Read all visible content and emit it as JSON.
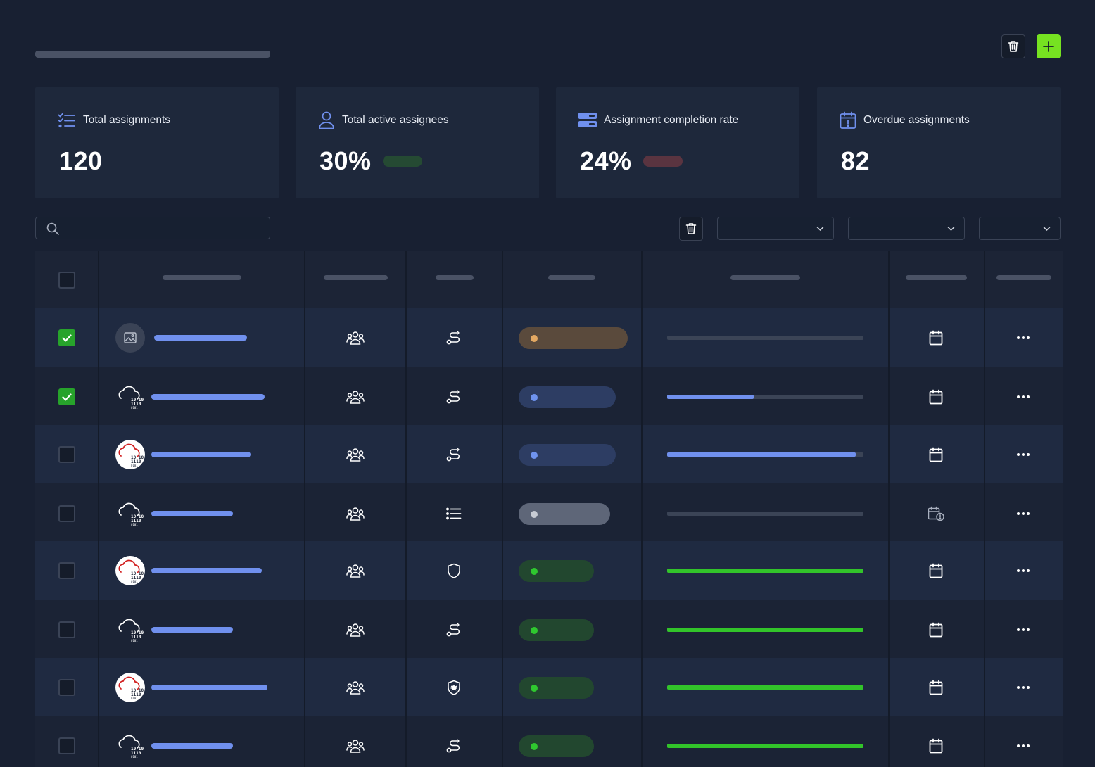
{
  "header": {
    "delete_icon": "trash-icon",
    "add_icon": "plus-icon",
    "accent_color": "#76e221"
  },
  "stats": [
    {
      "icon": "checklist-icon",
      "title": "Total assignments",
      "value": "120",
      "indicator_color": ""
    },
    {
      "icon": "user-icon",
      "title": "Total active assignees",
      "value": "30%",
      "indicator_color": "#254a33"
    },
    {
      "icon": "server-icon",
      "title": "Assignment completion rate",
      "value": "24%",
      "indicator_color": "#5a3440"
    },
    {
      "icon": "calendar-alert-icon",
      "title": "Overdue assignments",
      "value": "82",
      "indicator_color": ""
    }
  ],
  "toolbar": {
    "search_placeholder": "",
    "filters": [
      "",
      "",
      ""
    ]
  },
  "table": {
    "rows": [
      {
        "checked": true,
        "avatar": "image-placeholder",
        "type_icon": "route-icon",
        "status": "orange",
        "progress": 0,
        "due_icon": "calendar-icon"
      },
      {
        "checked": true,
        "avatar": "cloud-binary",
        "type_icon": "route-icon",
        "status": "blue",
        "progress": 0.44,
        "due_icon": "calendar-icon"
      },
      {
        "checked": false,
        "avatar": "cloud-binary-red",
        "type_icon": "route-icon",
        "status": "blue",
        "progress": 0.96,
        "due_icon": "calendar-icon"
      },
      {
        "checked": false,
        "avatar": "cloud-binary",
        "type_icon": "list-icon",
        "status": "gray",
        "progress": 0,
        "due_icon": "calendar-overdue-icon"
      },
      {
        "checked": false,
        "avatar": "cloud-binary-red",
        "type_icon": "shield-icon",
        "status": "green",
        "progress": 1,
        "due_icon": "calendar-icon"
      },
      {
        "checked": false,
        "avatar": "cloud-binary",
        "type_icon": "route-icon",
        "status": "green",
        "progress": 1,
        "due_icon": "calendar-icon"
      },
      {
        "checked": false,
        "avatar": "cloud-binary-red",
        "type_icon": "shield-bug-icon",
        "status": "green",
        "progress": 1,
        "due_icon": "calendar-icon"
      },
      {
        "checked": false,
        "avatar": "cloud-binary",
        "type_icon": "route-icon",
        "status": "green",
        "progress": 1,
        "due_icon": "calendar-icon"
      }
    ],
    "status_colors": {
      "orange": {
        "bg": "#5a4a3c",
        "dot": "#e3a862"
      },
      "blue": {
        "bg": "#2d3d63",
        "dot": "#6f93ef"
      },
      "gray": {
        "bg": "#5e6678",
        "dot": "#c8ccd4"
      },
      "green": {
        "bg": "#22472f",
        "dot": "#2fc82f"
      }
    },
    "progress_colors": {
      "low": "#7090ee",
      "complete": "#32c42a"
    }
  }
}
